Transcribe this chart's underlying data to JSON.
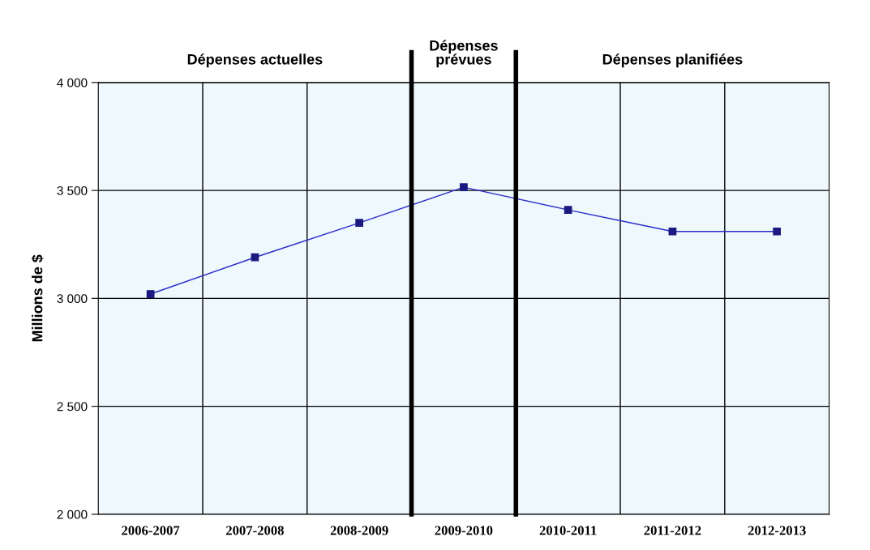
{
  "chart_data": {
    "type": "line",
    "ylabel": "Millions de $",
    "categories": [
      "2006-2007",
      "2007-2008",
      "2008-2009",
      "2009-2010",
      "2010-2011",
      "2011-2012",
      "2012-2013"
    ],
    "series": [
      {
        "color": "#2b2bc8",
        "values": [
          3020,
          3190,
          3350,
          3515,
          3410,
          3310,
          3310
        ]
      }
    ],
    "ylim": [
      2000,
      4000
    ],
    "yticks": [
      {
        "value": 2000,
        "label": "2 000"
      },
      {
        "value": 2500,
        "label": "2 500"
      },
      {
        "value": 3000,
        "label": "3 000"
      },
      {
        "value": 3500,
        "label": "3 500"
      },
      {
        "value": 4000,
        "label": "4 000"
      }
    ],
    "annotations": [
      "Dépenses actuelles",
      "Dépenses\nprévues",
      "Dépenses planifiées"
    ],
    "grid": true,
    "marker": "square"
  }
}
